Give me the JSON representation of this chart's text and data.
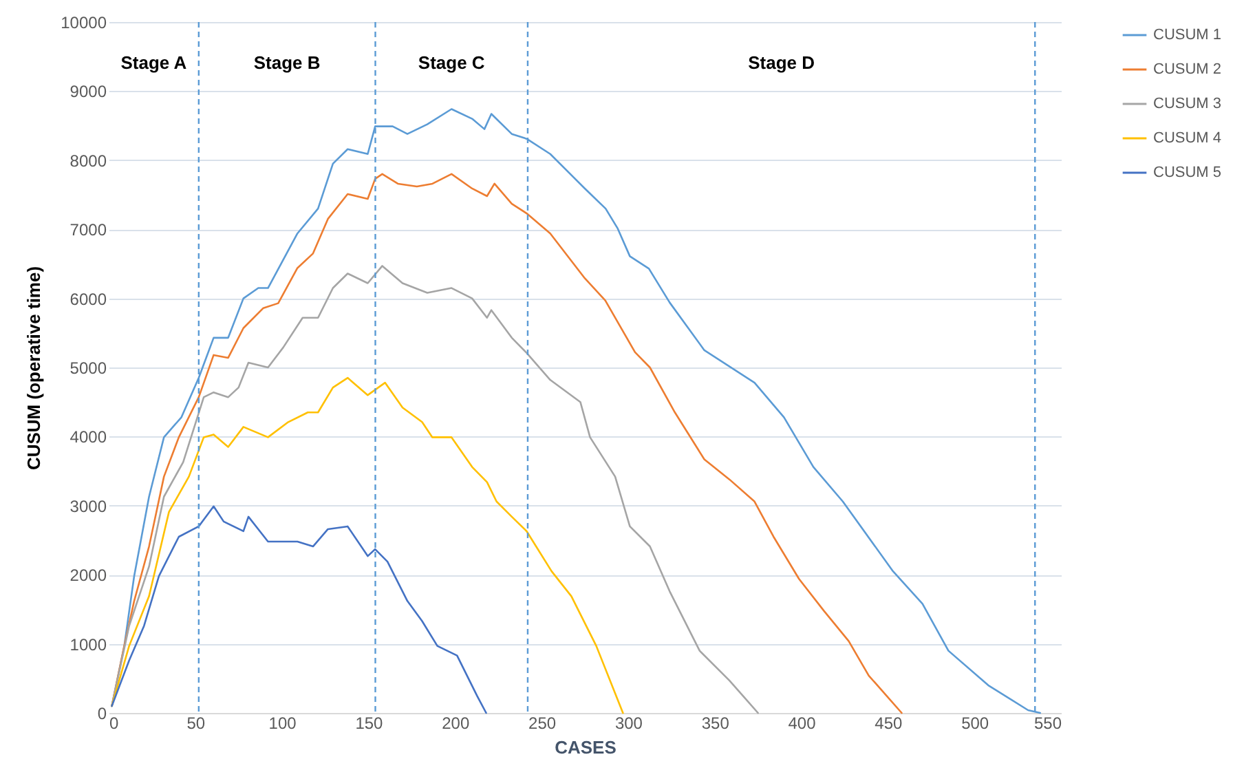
{
  "chart_data": {
    "type": "line",
    "xlabel": "CASES",
    "ylabel": "CUSUM (operative time)",
    "xlim": [
      0,
      550
    ],
    "xticks": [
      0,
      50,
      100,
      150,
      200,
      250,
      300,
      350,
      400,
      450,
      500,
      550
    ],
    "ylim": [
      0,
      10000
    ],
    "yticks": [
      0,
      1000,
      2000,
      3000,
      4000,
      5000,
      6000,
      7000,
      8000,
      9000,
      10000
    ],
    "grid": "y",
    "legend": "right",
    "marker": "none",
    "line_style": "solid",
    "annotations": [
      "Stage A",
      "Stage B",
      "Stage C",
      "Stage D"
    ],
    "ref_lines": [
      {
        "axis": "x",
        "value": 52,
        "color": "#5b9bd5",
        "line_style": "dashed"
      },
      {
        "axis": "x",
        "value": 154,
        "color": "#5b9bd5",
        "line_style": "dashed"
      },
      {
        "axis": "x",
        "value": 242,
        "color": "#5b9bd5",
        "line_style": "dashed"
      },
      {
        "axis": "x",
        "value": 535,
        "color": "#5b9bd5",
        "line_style": "dashed"
      }
    ],
    "series": [
      {
        "name": "CUSUM 1",
        "color": "#5b9bd5",
        "x": [
          1.8,
          9,
          14.7,
          23.3,
          31.9,
          42,
          52,
          60.6,
          69,
          77.8,
          86.4,
          92,
          109,
          120.9,
          129.5,
          138,
          149.6,
          153.9,
          164,
          172.5,
          184,
          198,
          209.9,
          217,
          221,
          232.8,
          241.4,
          255,
          275,
          287,
          294,
          301,
          312,
          324,
          344,
          373,
          390,
          407,
          424,
          453,
          470,
          485,
          508,
          531,
          538
        ],
        "values": [
          100,
          970,
          1980,
          3130,
          3990,
          4280,
          4850,
          5430,
          5430,
          6000,
          6150,
          6150,
          6940,
          7300,
          7950,
          8160,
          8090,
          8490,
          8490,
          8380,
          8520,
          8740,
          8600,
          8450,
          8670,
          8380,
          8310,
          8090,
          7590,
          7300,
          7010,
          6610,
          6430,
          5940,
          5250,
          4780,
          4280,
          3560,
          3060,
          2050,
          1580,
          900,
          400,
          40,
          0
        ]
      },
      {
        "name": "CUSUM 2",
        "color": "#ed7d31",
        "x": [
          1.8,
          9,
          14.7,
          23.3,
          31.9,
          40.5,
          52,
          60.6,
          69,
          77.8,
          89.3,
          97.9,
          109,
          118,
          126.6,
          138,
          149.6,
          153.9,
          158,
          167,
          178,
          187,
          198,
          209.9,
          218.5,
          222.8,
          232.8,
          241.4,
          255,
          275,
          286.8,
          304,
          312.6,
          327,
          344,
          358.5,
          373,
          384,
          398.7,
          413,
          427.4,
          439,
          458
        ],
        "values": [
          100,
          970,
          1620,
          2410,
          3420,
          3990,
          4570,
          5180,
          5140,
          5570,
          5860,
          5930,
          6440,
          6650,
          7150,
          7510,
          7440,
          7730,
          7800,
          7660,
          7620,
          7660,
          7800,
          7590,
          7480,
          7660,
          7370,
          7230,
          6940,
          6290,
          5970,
          5220,
          5000,
          4350,
          3670,
          3380,
          3060,
          2550,
          1940,
          1480,
          1040,
          540,
          0
        ]
      },
      {
        "name": "CUSUM 3",
        "color": "#a5a5a5",
        "x": [
          1.8,
          11.8,
          23.3,
          31.9,
          43,
          54.9,
          60.6,
          69,
          75,
          80.7,
          92,
          100.8,
          112,
          120.9,
          129.5,
          138,
          149.6,
          158,
          169.7,
          184,
          198,
          209.9,
          218.5,
          221,
          232.8,
          241.4,
          255,
          272.4,
          278,
          292.5,
          301,
          312.6,
          324,
          341.3,
          358.5,
          375
        ],
        "values": [
          100,
          1260,
          2120,
          3130,
          3630,
          4570,
          4640,
          4570,
          4710,
          5070,
          5000,
          5290,
          5720,
          5720,
          6150,
          6360,
          6220,
          6470,
          6220,
          6080,
          6150,
          6000,
          5720,
          5830,
          5430,
          5210,
          4820,
          4500,
          3990,
          3420,
          2700,
          2410,
          1760,
          900,
          470,
          0
        ]
      },
      {
        "name": "CUSUM 4",
        "color": "#ffc000",
        "x": [
          1.8,
          11.8,
          23.3,
          34.8,
          46.3,
          54.9,
          60.6,
          69,
          77.8,
          92,
          103.7,
          115,
          120.9,
          129.5,
          138,
          149.6,
          159.6,
          169.7,
          181,
          186.9,
          198,
          209.9,
          218.5,
          224,
          232.8,
          241.4,
          255.8,
          267.2,
          281.6,
          297
        ],
        "values": [
          100,
          970,
          1690,
          2910,
          3420,
          3990,
          4030,
          3850,
          4140,
          3990,
          4210,
          4350,
          4350,
          4710,
          4850,
          4600,
          4780,
          4420,
          4210,
          3990,
          3990,
          3560,
          3340,
          3060,
          2840,
          2630,
          2050,
          1690,
          970,
          0
        ]
      },
      {
        "name": "CUSUM 5",
        "color": "#4472c4",
        "x": [
          1.8,
          11.8,
          20.4,
          29,
          40.5,
          52,
          60.6,
          66.4,
          77.8,
          80.7,
          92,
          109,
          118,
          126.6,
          138,
          149.6,
          153.9,
          161,
          172.5,
          181,
          189.8,
          201.2,
          212.7,
          218
        ],
        "values": [
          100,
          760,
          1260,
          1980,
          2550,
          2700,
          2990,
          2770,
          2630,
          2840,
          2480,
          2480,
          2410,
          2660,
          2700,
          2270,
          2370,
          2190,
          1620,
          1330,
          970,
          830,
          250,
          0
        ]
      }
    ]
  }
}
